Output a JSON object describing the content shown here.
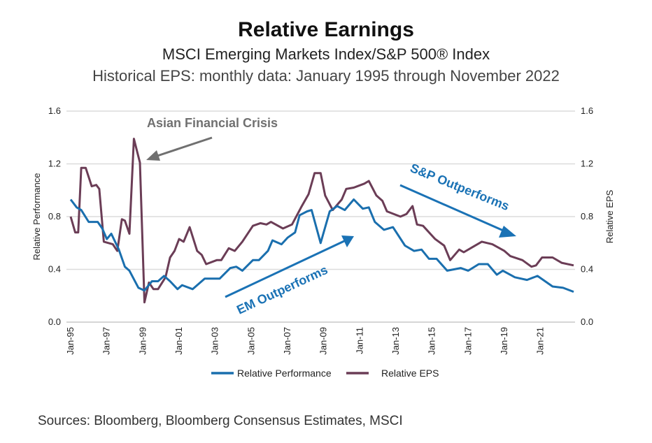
{
  "chart_data": {
    "type": "line",
    "title": "Relative Earnings",
    "subtitle": "MSCI Emerging Markets Index/S&P 500® Index",
    "subtitle2": "Historical EPS: monthly data: January 1995 through November 2022",
    "ylabel_left": "Relative Performance",
    "ylabel_right": "Relative EPS",
    "ylim": [
      0,
      1.6
    ],
    "y_ticks": [
      "0.0",
      "0.4",
      "0.8",
      "1.2",
      "1.6"
    ],
    "x_ticks": [
      "Jan-95",
      "Jan-97",
      "Jan-99",
      "Jan-01",
      "Jan-03",
      "Jan-05",
      "Jan-07",
      "Jan-09",
      "Jan-11",
      "Jan-13",
      "Jan-15",
      "Jan-17",
      "Jan-19",
      "Jan-21"
    ],
    "xlim": [
      "1995-01",
      "2022-11"
    ],
    "grid": true,
    "legend_position": "bottom",
    "series": [
      {
        "name": "Relative Performance",
        "color": "#1a6fae",
        "axis": "left",
        "points": [
          [
            "1995-01",
            0.93
          ],
          [
            "1995-05",
            0.87
          ],
          [
            "1995-08",
            0.85
          ],
          [
            "1996-01",
            0.76
          ],
          [
            "1996-07",
            0.76
          ],
          [
            "1996-10",
            0.71
          ],
          [
            "1997-01",
            0.63
          ],
          [
            "1997-04",
            0.67
          ],
          [
            "1997-09",
            0.55
          ],
          [
            "1998-01",
            0.42
          ],
          [
            "1998-04",
            0.39
          ],
          [
            "1998-10",
            0.26
          ],
          [
            "1999-02",
            0.24
          ],
          [
            "1999-07",
            0.31
          ],
          [
            "1999-11",
            0.31
          ],
          [
            "2000-03",
            0.35
          ],
          [
            "2000-07",
            0.31
          ],
          [
            "2000-12",
            0.25
          ],
          [
            "2001-03",
            0.28
          ],
          [
            "2001-10",
            0.25
          ],
          [
            "2002-06",
            0.33
          ],
          [
            "2002-10",
            0.33
          ],
          [
            "2003-04",
            0.33
          ],
          [
            "2003-11",
            0.41
          ],
          [
            "2004-03",
            0.42
          ],
          [
            "2004-07",
            0.39
          ],
          [
            "2005-02",
            0.47
          ],
          [
            "2005-06",
            0.47
          ],
          [
            "2005-12",
            0.54
          ],
          [
            "2006-03",
            0.62
          ],
          [
            "2006-09",
            0.59
          ],
          [
            "2007-01",
            0.64
          ],
          [
            "2007-06",
            0.68
          ],
          [
            "2007-09",
            0.81
          ],
          [
            "2008-02",
            0.84
          ],
          [
            "2008-05",
            0.85
          ],
          [
            "2008-11",
            0.6
          ],
          [
            "2009-05",
            0.84
          ],
          [
            "2009-10",
            0.88
          ],
          [
            "2010-03",
            0.85
          ],
          [
            "2010-09",
            0.93
          ],
          [
            "2011-03",
            0.86
          ],
          [
            "2011-07",
            0.87
          ],
          [
            "2011-11",
            0.76
          ],
          [
            "2012-05",
            0.7
          ],
          [
            "2012-11",
            0.72
          ],
          [
            "2013-07",
            0.58
          ],
          [
            "2014-01",
            0.54
          ],
          [
            "2014-06",
            0.55
          ],
          [
            "2014-11",
            0.48
          ],
          [
            "2015-04",
            0.48
          ],
          [
            "2015-11",
            0.39
          ],
          [
            "2016-08",
            0.41
          ],
          [
            "2017-01",
            0.39
          ],
          [
            "2017-08",
            0.44
          ],
          [
            "2018-02",
            0.44
          ],
          [
            "2018-08",
            0.36
          ],
          [
            "2018-12",
            0.39
          ],
          [
            "2019-08",
            0.34
          ],
          [
            "2020-04",
            0.32
          ],
          [
            "2020-11",
            0.35
          ],
          [
            "2021-09",
            0.27
          ],
          [
            "2022-04",
            0.26
          ],
          [
            "2022-11",
            0.23
          ]
        ]
      },
      {
        "name": "Relative EPS",
        "color": "#6b3d56",
        "axis": "right",
        "points": [
          [
            "1995-01",
            0.8
          ],
          [
            "1995-04",
            0.68
          ],
          [
            "1995-06",
            0.68
          ],
          [
            "1995-08",
            1.17
          ],
          [
            "1995-11",
            1.17
          ],
          [
            "1996-03",
            1.03
          ],
          [
            "1996-06",
            1.04
          ],
          [
            "1996-08",
            1.01
          ],
          [
            "1996-11",
            0.61
          ],
          [
            "1997-05",
            0.59
          ],
          [
            "1997-08",
            0.54
          ],
          [
            "1997-11",
            0.78
          ],
          [
            "1998-01",
            0.77
          ],
          [
            "1998-04",
            0.67
          ],
          [
            "1998-07",
            1.39
          ],
          [
            "1998-11",
            1.21
          ],
          [
            "1999-02",
            0.15
          ],
          [
            "1999-05",
            0.3
          ],
          [
            "1999-08",
            0.25
          ],
          [
            "1999-11",
            0.25
          ],
          [
            "2000-04",
            0.34
          ],
          [
            "2000-07",
            0.49
          ],
          [
            "2000-10",
            0.54
          ],
          [
            "2001-01",
            0.63
          ],
          [
            "2001-04",
            0.61
          ],
          [
            "2001-08",
            0.72
          ],
          [
            "2002-01",
            0.54
          ],
          [
            "2002-04",
            0.51
          ],
          [
            "2002-07",
            0.44
          ],
          [
            "2003-02",
            0.47
          ],
          [
            "2003-05",
            0.47
          ],
          [
            "2003-10",
            0.56
          ],
          [
            "2004-02",
            0.54
          ],
          [
            "2004-07",
            0.61
          ],
          [
            "2005-02",
            0.73
          ],
          [
            "2005-07",
            0.75
          ],
          [
            "2005-11",
            0.74
          ],
          [
            "2006-02",
            0.76
          ],
          [
            "2006-10",
            0.71
          ],
          [
            "2007-04",
            0.74
          ],
          [
            "2007-10",
            0.87
          ],
          [
            "2008-03",
            0.97
          ],
          [
            "2008-07",
            1.13
          ],
          [
            "2008-11",
            1.13
          ],
          [
            "2009-02",
            0.96
          ],
          [
            "2009-07",
            0.85
          ],
          [
            "2010-01",
            0.93
          ],
          [
            "2010-04",
            1.01
          ],
          [
            "2010-09",
            1.02
          ],
          [
            "2011-04",
            1.05
          ],
          [
            "2011-07",
            1.07
          ],
          [
            "2011-12",
            0.96
          ],
          [
            "2012-04",
            0.92
          ],
          [
            "2012-07",
            0.84
          ],
          [
            "2013-04",
            0.8
          ],
          [
            "2013-08",
            0.82
          ],
          [
            "2013-12",
            0.88
          ],
          [
            "2014-03",
            0.74
          ],
          [
            "2014-07",
            0.73
          ],
          [
            "2015-03",
            0.63
          ],
          [
            "2015-09",
            0.58
          ],
          [
            "2016-01",
            0.47
          ],
          [
            "2016-07",
            0.55
          ],
          [
            "2016-10",
            0.53
          ],
          [
            "2017-04",
            0.57
          ],
          [
            "2017-10",
            0.61
          ],
          [
            "2018-05",
            0.59
          ],
          [
            "2019-01",
            0.54
          ],
          [
            "2019-05",
            0.5
          ],
          [
            "2020-01",
            0.47
          ],
          [
            "2020-07",
            0.42
          ],
          [
            "2020-10",
            0.43
          ],
          [
            "2021-02",
            0.49
          ],
          [
            "2021-09",
            0.49
          ],
          [
            "2022-03",
            0.45
          ],
          [
            "2022-11",
            0.43
          ]
        ]
      }
    ],
    "annotations": {
      "asian_crisis": "Asian Financial Crisis",
      "em_outperforms": "EM Outperforms",
      "sp_outperforms": "S&P Outperforms"
    },
    "annotation_colors": {
      "gray": "#707070",
      "blue": "#1a72b5"
    }
  },
  "source": "Sources: Bloomberg, Bloomberg Consensus Estimates, MSCI"
}
